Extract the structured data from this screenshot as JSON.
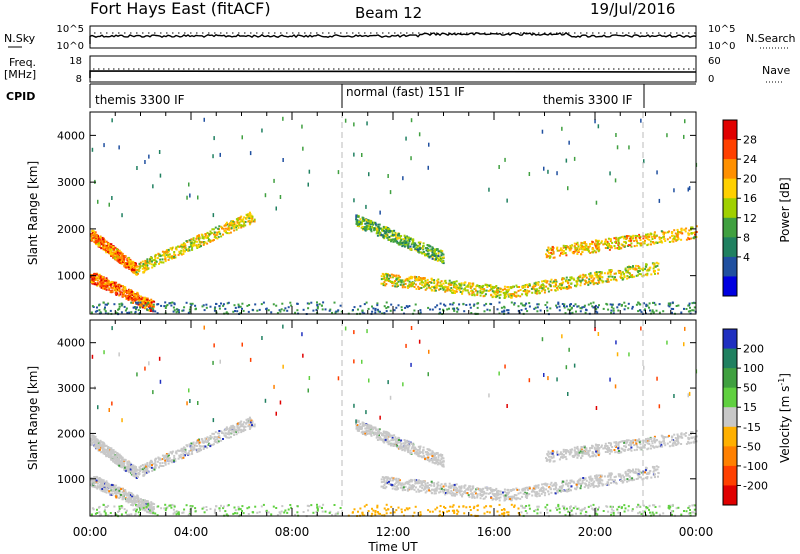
{
  "header": {
    "radar": "Fort Hays East (fitACF)",
    "beam": "Beam 12",
    "date": "19/Jul/2016"
  },
  "noise_panel": {
    "left_label": "N.Sky",
    "right_label": "N.Search",
    "left_ticks": [
      "10^5",
      "10^0"
    ],
    "right_ticks": [
      "10^5",
      "10^0"
    ]
  },
  "freq_panel": {
    "left_label_1": "Freq.",
    "left_label_2": "[MHz]",
    "right_label": "Nave",
    "left_ticks": [
      "18",
      "8"
    ],
    "right_ticks": [
      "60",
      "0"
    ]
  },
  "cpid": {
    "label": "CPID",
    "segments": [
      {
        "text": "themis 3300 IF",
        "start_hour": 0,
        "end_hour": 10
      },
      {
        "text": "normal (fast) 151 IF",
        "start_hour": 10,
        "end_hour": 17
      },
      {
        "text": "themis 3300 IF",
        "start_hour": 17,
        "end_hour": 22
      }
    ]
  },
  "x_axis": {
    "title": "Time UT",
    "ticks": [
      {
        "hour": 0,
        "label": "00:00"
      },
      {
        "hour": 4,
        "label": "04:00"
      },
      {
        "hour": 8,
        "label": "08:00"
      },
      {
        "hour": 12,
        "label": "12:00"
      },
      {
        "hour": 16,
        "label": "16:00"
      },
      {
        "hour": 20,
        "label": "20:00"
      },
      {
        "hour": 24,
        "label": "00:00"
      }
    ]
  },
  "power_colorbar": {
    "title": "Power [dB]",
    "labels": [
      "28",
      "24",
      "20",
      "16",
      "12",
      "8",
      "4"
    ],
    "colors": [
      "#e00000",
      "#ff4000",
      "#ff9000",
      "#ffd000",
      "#a0d000",
      "#40a040",
      "#208060",
      "#2050a0",
      "#0000e0"
    ]
  },
  "velocity_colorbar": {
    "title": "Velocity",
    "unit": "[m s",
    "unit_sup": "-1",
    "unit_end": "]",
    "labels": [
      "200",
      "100",
      "50",
      "15",
      "-15",
      "-50",
      "-100",
      "-200"
    ],
    "colors": [
      "#2030c0",
      "#208060",
      "#40a040",
      "#60d040",
      "#c8c8c8",
      "#ffb000",
      "#ff8000",
      "#ff4000",
      "#e00000"
    ]
  },
  "chart_data": {
    "type": "heatmap",
    "title": "Fort Hays East (fitACF) Beam 12 19/Jul/2016",
    "xlabel": "Time UT",
    "ylabel": "Slant Range [km]",
    "xlim_hours": [
      0,
      24
    ],
    "ylim_km": [
      180,
      4500
    ],
    "y_ticks": [
      1000,
      2000,
      3000,
      4000
    ],
    "power_scatter_bands": [
      {
        "start_h": 0.0,
        "start_km": 1900,
        "end_h": 1.8,
        "end_km": 1150,
        "power_db": 24
      },
      {
        "start_h": 1.8,
        "start_km": 1150,
        "end_h": 6.5,
        "end_km": 2300,
        "power_db": 18
      },
      {
        "start_h": 0.0,
        "start_km": 1000,
        "end_h": 2.5,
        "end_km": 350,
        "power_db": 26
      },
      {
        "start_h": 10.5,
        "start_km": 2200,
        "end_h": 14.0,
        "end_km": 1400,
        "power_db": 12
      },
      {
        "start_h": 11.5,
        "start_km": 950,
        "end_h": 16.5,
        "end_km": 650,
        "power_db": 18
      },
      {
        "start_h": 16.5,
        "start_km": 650,
        "end_h": 22.5,
        "end_km": 1200,
        "power_db": 18
      },
      {
        "start_h": 18.0,
        "start_km": 1500,
        "end_h": 24.0,
        "end_km": 1950,
        "power_db": 20
      }
    ]
  }
}
